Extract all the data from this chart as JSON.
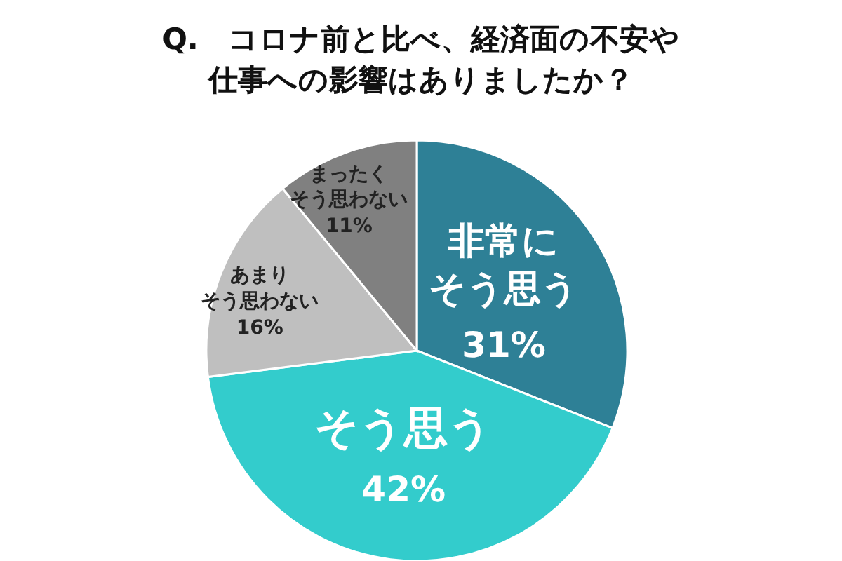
{
  "chart_data": {
    "type": "pie",
    "title": "Q.　コロナ前と比べ、経済面の不安や仕事への影響はありましたか？",
    "categories": [
      "非常にそう思う",
      "そう思う",
      "あまりそう思わない",
      "まったくそう思わない"
    ],
    "values": [
      31,
      42,
      16,
      11
    ],
    "value_labels": [
      "31%",
      "42%",
      "16%",
      "11%"
    ],
    "colors": [
      "#2e8096",
      "#33cccc",
      "#bfbfbf",
      "#808080"
    ],
    "legend": false
  }
}
